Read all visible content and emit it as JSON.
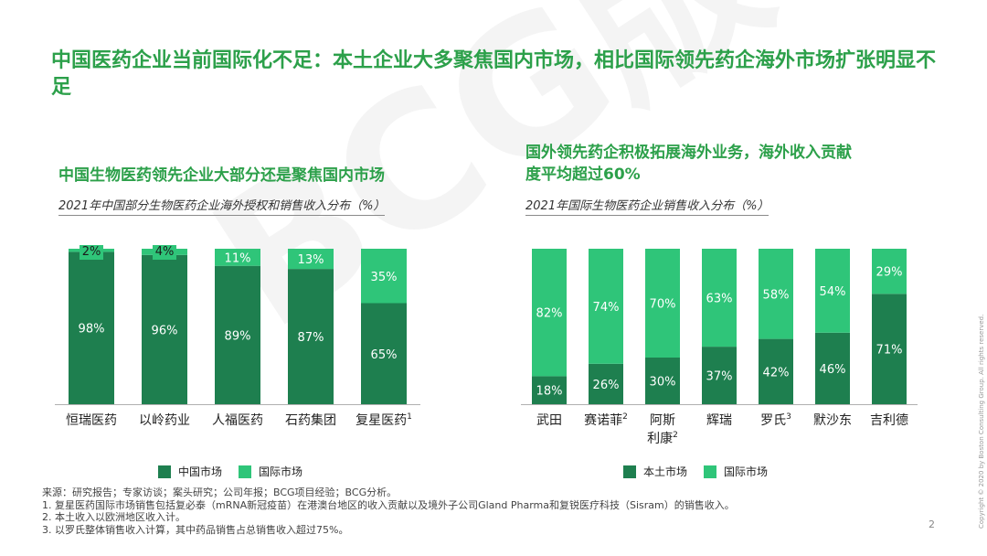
{
  "title": "中国医药企业当前国际化不足：本土企业大多聚焦国内市场，相比国际领先药企海外市场扩张明显不足",
  "colors": {
    "domestic": "#1e7f4f",
    "intl": "#2fc579",
    "title": "#2ca04a"
  },
  "left": {
    "heading": "中国生物医药领先企业大部分还是聚焦国内市场",
    "caption": "2021年中国部分生物医药企业海外授权和销售收入分布（%）",
    "legend_domestic": "中国市场",
    "legend_intl": "国际市场"
  },
  "right": {
    "heading_line1": "国外领先药企积极拓展海外业务，海外收入贡献",
    "heading_line2": "度平均超过60%",
    "caption": "2021年国际生物医药企业销售收入分布（%）",
    "legend_domestic": "本土市场",
    "legend_intl": "国际市场"
  },
  "chart_data": [
    {
      "type": "bar",
      "stacked": true,
      "title": "2021年中国部分生物医药企业海外授权和销售收入分布（%）",
      "categories": [
        "恒瑞医药",
        "以岭药业",
        "人福医药",
        "石药集团",
        "复星医药"
      ],
      "category_superscripts": [
        "",
        "",
        "",
        "",
        "1"
      ],
      "series": [
        {
          "name": "中国市场",
          "values": [
            98,
            96,
            89,
            87,
            65
          ]
        },
        {
          "name": "国际市场",
          "values": [
            2,
            4,
            11,
            13,
            35
          ]
        }
      ],
      "ylim": [
        0,
        100
      ]
    },
    {
      "type": "bar",
      "stacked": true,
      "title": "2021年国际生物医药企业销售收入分布（%）",
      "categories": [
        "武田",
        "赛诺菲",
        "阿斯利康",
        "辉瑞",
        "罗氏",
        "默沙东",
        "吉利德"
      ],
      "category_line1": [
        "武田",
        "赛诺菲",
        "阿斯",
        "辉瑞",
        "罗氏",
        "默沙东",
        "吉利德"
      ],
      "category_line2": [
        "",
        "",
        "利康",
        "",
        "",
        "",
        ""
      ],
      "category_superscripts": [
        "",
        "2",
        "2",
        "",
        "3",
        "",
        ""
      ],
      "series": [
        {
          "name": "本土市场",
          "values": [
            18,
            26,
            30,
            37,
            42,
            46,
            71
          ]
        },
        {
          "name": "国际市场",
          "values": [
            82,
            74,
            70,
            63,
            58,
            54,
            29
          ]
        }
      ],
      "ylim": [
        0,
        100
      ]
    }
  ],
  "notes": [
    "来源：研究报告；专家访谈；案头研究；公司年报；BCG项目经验；BCG分析。",
    "1. 复星医药国际市场销售包括复必泰（mRNA新冠疫苗）在港澳台地区的收入贡献以及境外子公司Gland Pharma和复锐医疗科技（Sisram）的销售收入。",
    "2. 本土收入以欧洲地区收入计。",
    "3. 以罗氏整体销售收入计算，其中药品销售占总销售收入超过75%。"
  ],
  "watermark": "BCG版权所有",
  "page_number": "2",
  "copyright": "Copyright © 2020 by Boston Consulting Group. All rights reserved."
}
